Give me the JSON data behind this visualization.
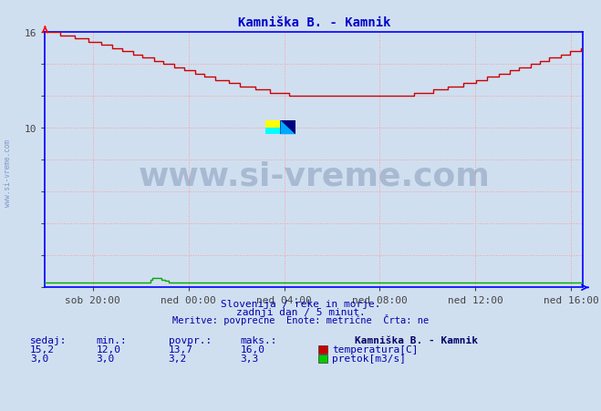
{
  "title": "Kamniška B. - Kamnik",
  "title_color": "#0000cc",
  "background_color": "#d0dff0",
  "plot_bg_color": "#d0dff0",
  "grid_color": "#ff9999",
  "grid_linestyle": ":",
  "xlabel_ticks": [
    "sob 20:00",
    "ned 00:00",
    "ned 04:00",
    "ned 08:00",
    "ned 12:00",
    "ned 16:00"
  ],
  "ylim": [
    0,
    16
  ],
  "temp_color": "#cc0000",
  "flow_color": "#00aa00",
  "axis_color": "#0000ff",
  "watermark_text": "www.si-vreme.com",
  "watermark_color": "#1a3a6a",
  "watermark_alpha": 0.22,
  "info_line1": "Slovenija / reke in morje.",
  "info_line2": "zadnji dan / 5 minut.",
  "info_line3": "Meritve: povprečne  Enote: metrične  Črta: ne",
  "info_color": "#0000aa",
  "legend_title": "Kamniška B. - Kamnik",
  "legend_items": [
    "temperatura[C]",
    "pretok[m3/s]"
  ],
  "legend_colors": [
    "#cc0000",
    "#00cc00"
  ],
  "stats_headers": [
    "sedaj:",
    "min.:",
    "povpr.:",
    "maks.:"
  ],
  "stats_temp": [
    "15,2",
    "12,0",
    "13,7",
    "16,0"
  ],
  "stats_flow": [
    "3,0",
    "3,0",
    "3,2",
    "3,3"
  ],
  "stats_color": "#0000aa",
  "bold_color": "#000066",
  "side_watermark": "www.si-vreme.com",
  "total_hours": 22.5,
  "tick_hours": [
    2,
    6,
    10,
    14,
    18,
    22
  ]
}
